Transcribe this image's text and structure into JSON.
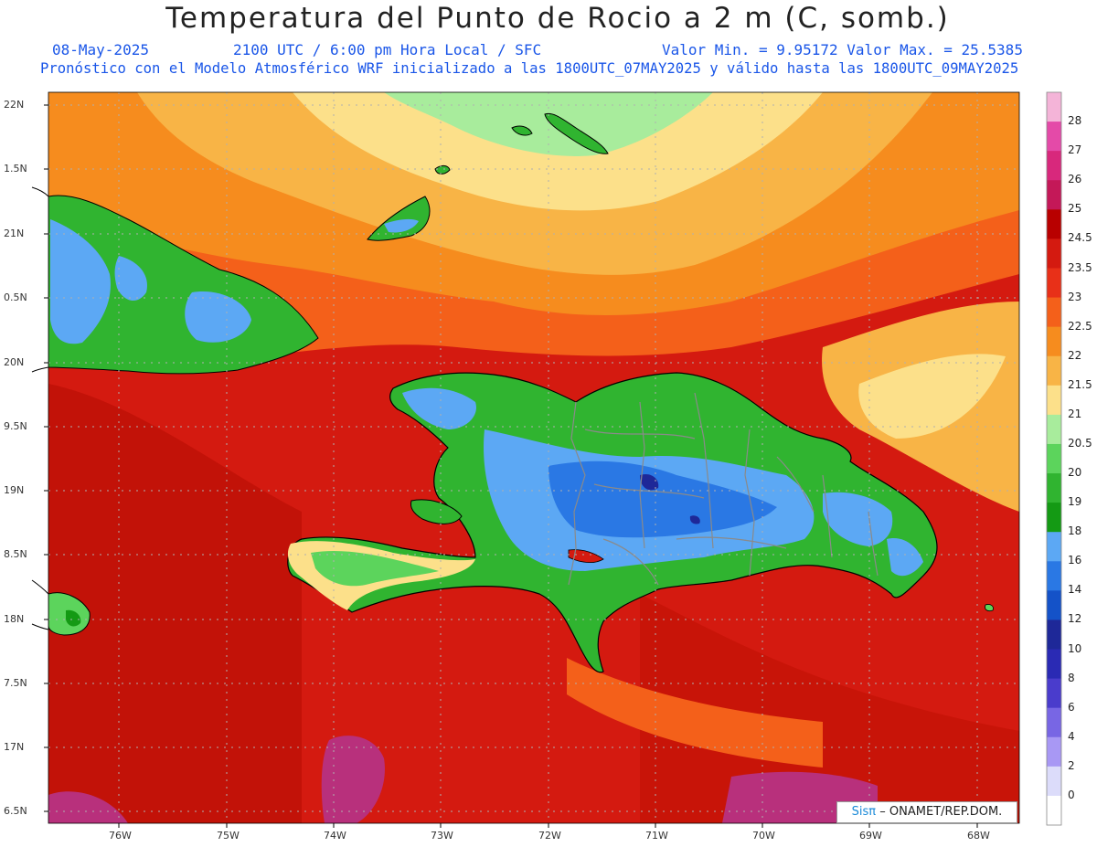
{
  "header": {
    "title": "Temperatura del Punto de Rocio a 2 m (C, somb.)",
    "date": "08-May-2025",
    "time": "2100 UTC / 6:00 pm Hora Local / SFC",
    "min_max": "Valor Min. = 9.95172  Valor Max. = 25.5385",
    "forecast": "Pronóstico con el Modelo Atmosférico WRF inicializado a las 1800UTC_07MAY2025 y válido hasta las  1800UTC_09MAY2025"
  },
  "map": {
    "lat_labels": [
      "22N",
      "1.5N",
      "21N",
      "0.5N",
      "20N",
      "9.5N",
      "19N",
      "8.5N",
      "18N",
      "7.5N",
      "17N",
      "6.5N"
    ],
    "lon_labels": [
      "76W",
      "75W",
      "74W",
      "73W",
      "72W",
      "71W",
      "70W",
      "69W",
      "68W"
    ]
  },
  "colorbar": {
    "labels": [
      "28",
      "27",
      "26",
      "25",
      "24.5",
      "23.5",
      "23",
      "22.5",
      "22",
      "21.5",
      "21",
      "20.5",
      "20",
      "19",
      "18",
      "16",
      "14",
      "12",
      "10",
      "8",
      "6",
      "4",
      "2",
      "0"
    ],
    "colors": [
      "#f4b4d8",
      "#e44aa8",
      "#d8287c",
      "#c41858",
      "#b80000",
      "#d41a10",
      "#e83018",
      "#f4601a",
      "#f68c1e",
      "#f8b446",
      "#fce08a",
      "#a8ec9c",
      "#5cd45c",
      "#30b430",
      "#149a14",
      "#5ca8f4",
      "#2a78e4",
      "#1452c8",
      "#1e2898",
      "#2a2ab4",
      "#4a3ccc",
      "#7866e4",
      "#a898f4",
      "#dcdcfa",
      "#ffffff"
    ]
  },
  "credit": {
    "brand": "Sisπ",
    "text": "– ONAMET/REP.DOM."
  }
}
